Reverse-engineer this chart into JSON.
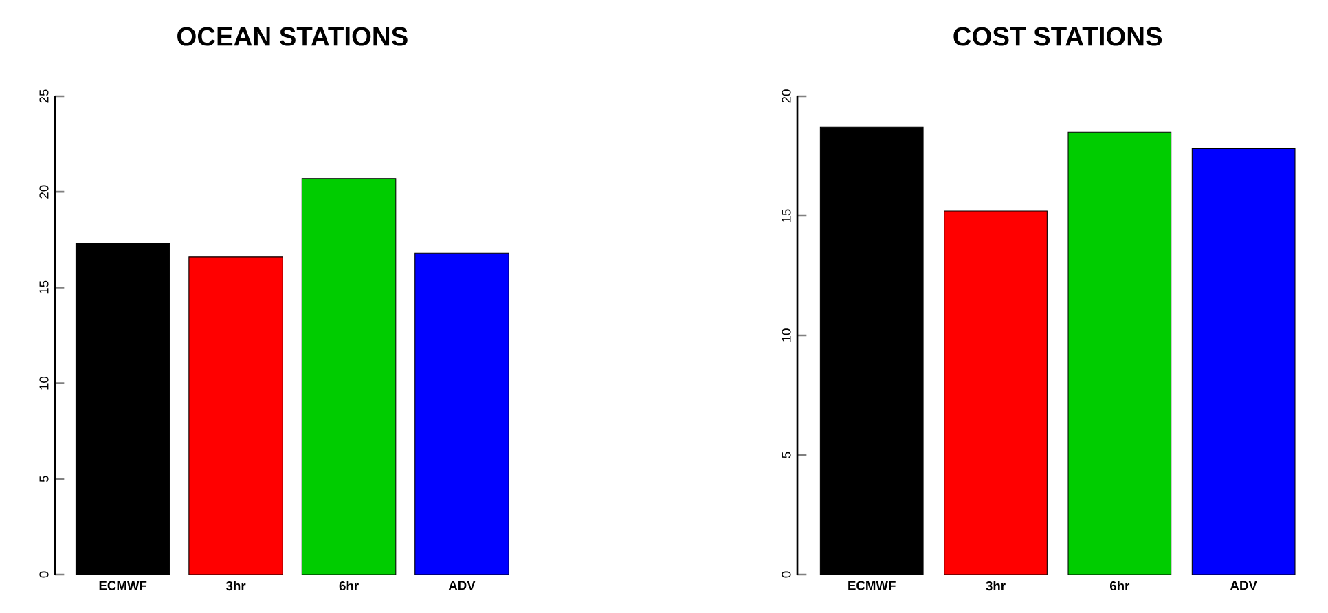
{
  "chart_data": [
    {
      "type": "bar",
      "title": "OCEAN STATIONS",
      "categories": [
        "ECMWF",
        "3hr",
        "6hr",
        "ADV"
      ],
      "values": [
        17.3,
        16.6,
        20.7,
        16.8
      ],
      "colors": [
        "#000000",
        "#ff0000",
        "#00cc00",
        "#0000ff"
      ],
      "ylim": [
        0,
        25
      ],
      "yticks": [
        0,
        5,
        10,
        15,
        20,
        25
      ]
    },
    {
      "type": "bar",
      "title": "COST  STATIONS",
      "categories": [
        "ECMWF",
        "3hr",
        "6hr",
        "ADV"
      ],
      "values": [
        18.7,
        15.2,
        18.5,
        17.8
      ],
      "colors": [
        "#000000",
        "#ff0000",
        "#00cc00",
        "#0000ff"
      ],
      "ylim": [
        0,
        20
      ],
      "yticks": [
        0,
        5,
        10,
        15,
        20
      ]
    }
  ]
}
